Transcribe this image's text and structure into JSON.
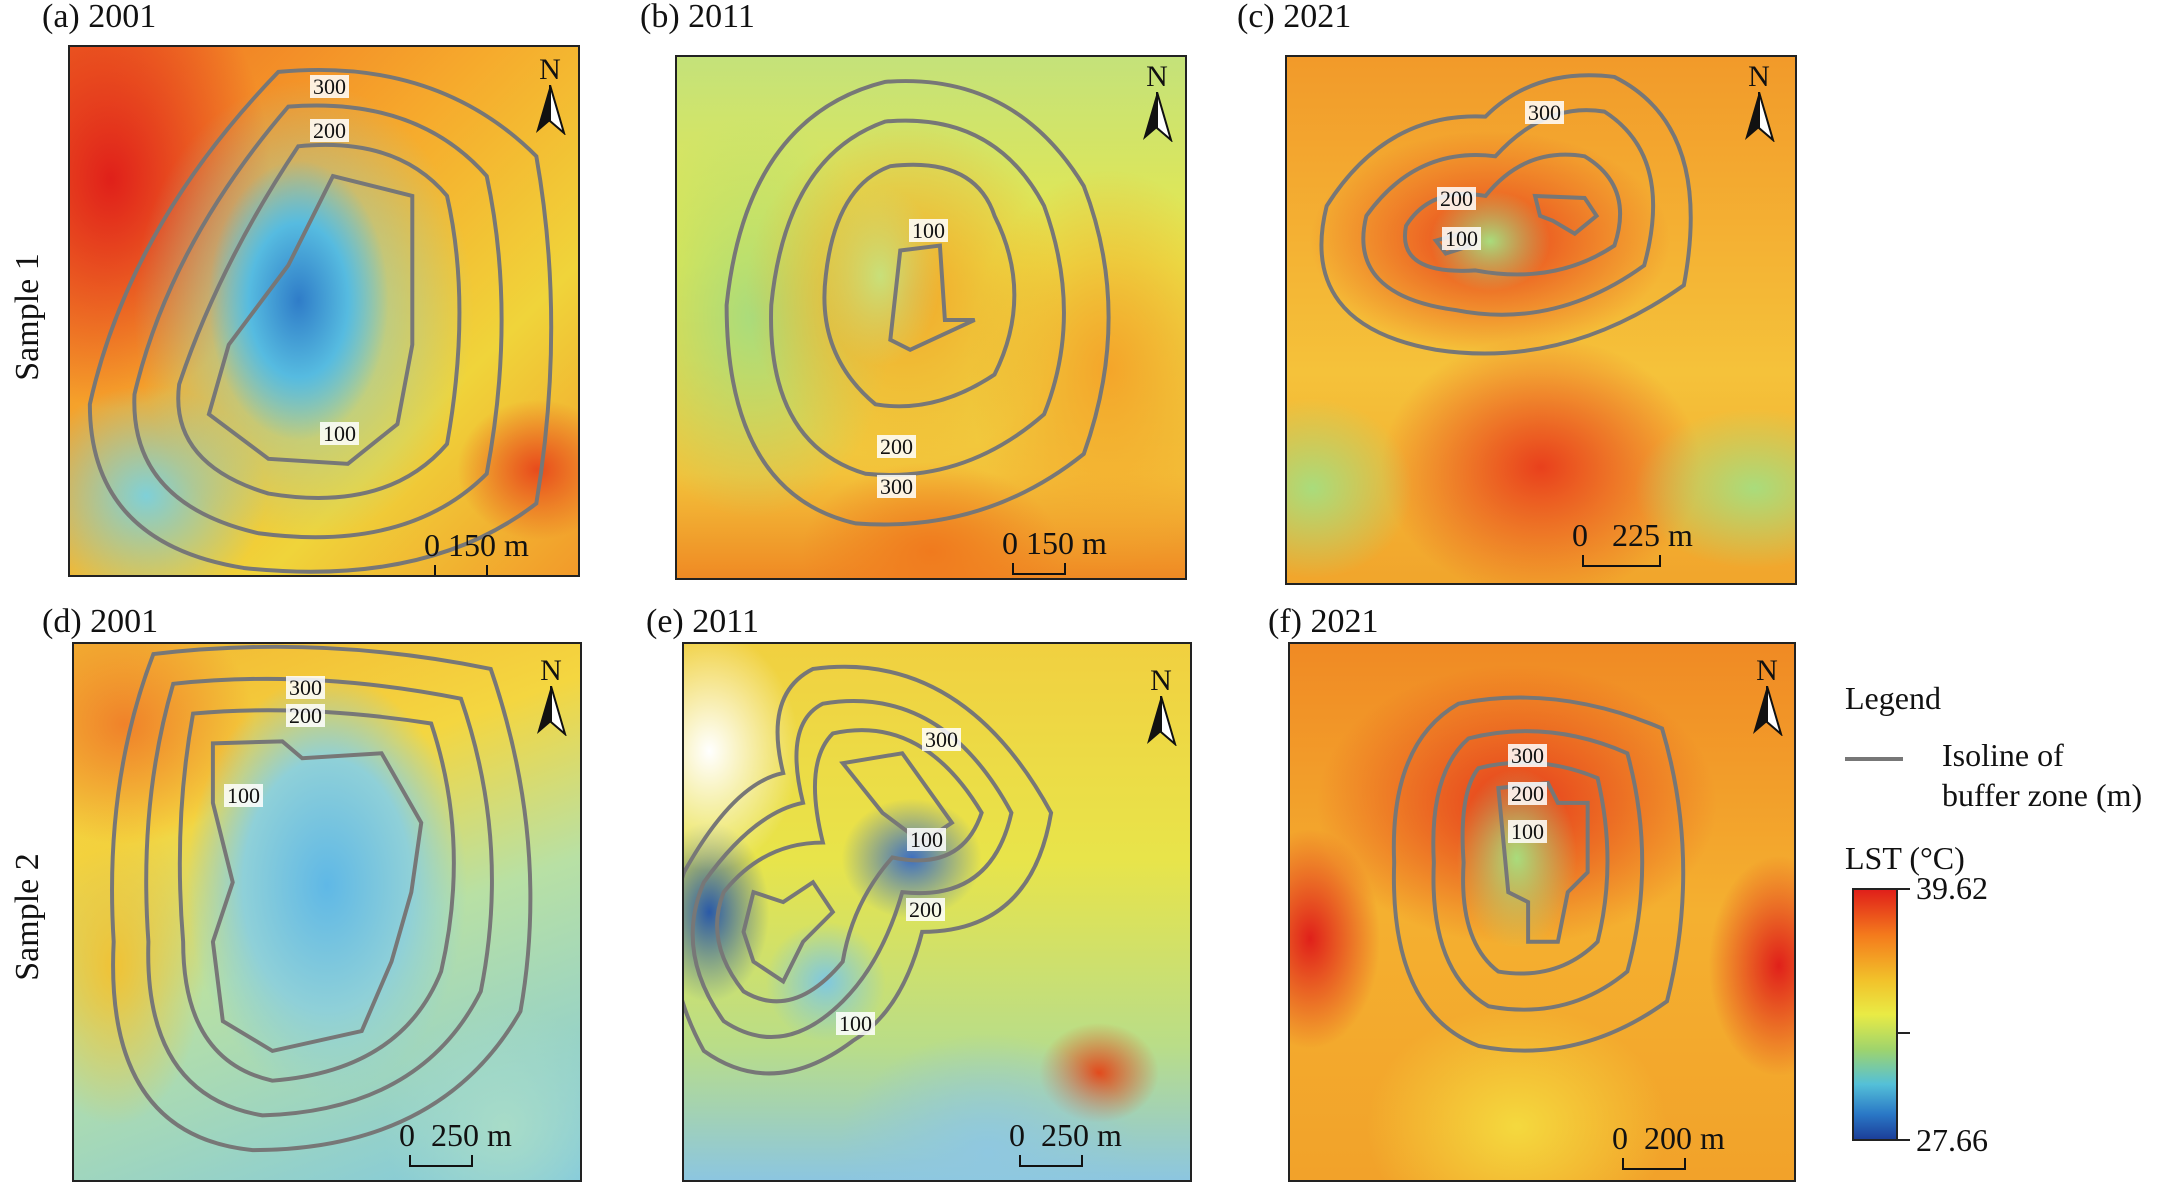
{
  "row_labels": [
    "Sample 1",
    "Sample 2"
  ],
  "panels": [
    {
      "title": "(a) 2001",
      "scale": "150 m",
      "zero": "0",
      "north": "N",
      "isolines": {
        "100": "100",
        "200": "200",
        "300": "300"
      }
    },
    {
      "title": "(b) 2011",
      "scale": "150 m",
      "zero": "0",
      "north": "N",
      "isolines": {
        "100": "100",
        "200": "200",
        "300": "300"
      }
    },
    {
      "title": "(c) 2021",
      "scale": "225 m",
      "zero": "0",
      "north": "N",
      "isolines": {
        "100": "100",
        "200": "200",
        "300": "300"
      }
    },
    {
      "title": "(d) 2001",
      "scale": "250 m",
      "zero": "0",
      "north": "N",
      "isolines": {
        "100": "100",
        "200": "200",
        "300": "300"
      }
    },
    {
      "title": "(e) 2011",
      "scale": "250 m",
      "zero": "0",
      "north": "N",
      "isolines": {
        "100": "100",
        "100b": "100",
        "200": "200",
        "300": "300"
      }
    },
    {
      "title": "(f) 2021",
      "scale": "200 m",
      "zero": "0",
      "north": "N",
      "isolines": {
        "100": "100",
        "200": "200",
        "300": "300"
      }
    }
  ],
  "legend": {
    "title": "Legend",
    "isoline_label": "Isoline of buffer zone (m)",
    "isoline_line1": "Isoline of",
    "isoline_line2": "buffer zone (m)",
    "lst_title": "LST (°C)",
    "lst_max": "39.62",
    "lst_min": "27.66"
  },
  "colors": {
    "hot": "#e0201a",
    "warm": "#f47a1c",
    "mid": "#e9eb45",
    "cool": "#54c0d8",
    "cold": "#1c3f9a",
    "isoline": "#777777"
  }
}
